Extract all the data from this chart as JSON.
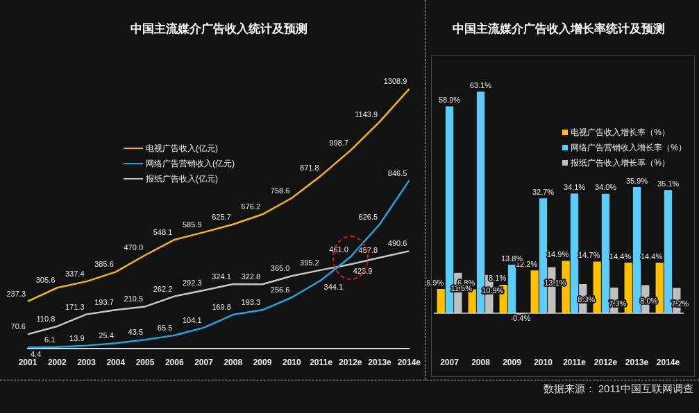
{
  "chart_data": [
    {
      "type": "line",
      "title": "中国主流媒介广告收入统计及预测",
      "categories": [
        "2001",
        "2002",
        "2003",
        "2004",
        "2005",
        "2006",
        "2007",
        "2008",
        "2009",
        "2010",
        "2011e",
        "2012e",
        "2013e",
        "2014e"
      ],
      "legend": "top left",
      "series": [
        {
          "name": "电视广告收入(亿元)",
          "color": "#f5b800",
          "values": [
            237.3,
            305.6,
            337.4,
            385.6,
            470.0,
            548.1,
            585.9,
            625.7,
            676.2,
            758.6,
            871.8,
            998.7,
            1143.9,
            1308.9
          ],
          "value_labels": [
            "237.3",
            "305.6",
            "337.4",
            "385.6",
            "470.0",
            "548.1",
            "585.9",
            "625.7",
            "676.2",
            "758.6",
            "871.8",
            "998.7",
            "1143.9",
            "1308.9"
          ]
        },
        {
          "name": "网络广告营销收入(亿元)",
          "color": "#1ea6e0",
          "values": [
            4.4,
            6.1,
            13.9,
            25.4,
            43.5,
            65.5,
            104.1,
            169.8,
            193.3,
            256.6,
            344.1,
            461.0,
            626.5,
            846.5
          ],
          "value_labels": [
            "4.4",
            "6.1",
            "13.9",
            "25.4",
            "43.5",
            "65.5",
            "104.1",
            "169.8",
            "193.3",
            "256.6",
            "344.1",
            "461.0",
            "626.5",
            "846.5"
          ]
        },
        {
          "name": "报纸广告收入(亿元)",
          "color": "#c8c8c8",
          "values": [
            70.6,
            110.8,
            171.3,
            193.7,
            210.5,
            262.2,
            292.3,
            324.1,
            322.8,
            365.0,
            395.2,
            423.9,
            457.8,
            490.6
          ],
          "value_labels": [
            "70.6",
            "110.8",
            "171.3",
            "193.7",
            "210.5",
            "262.2",
            "292.3",
            "324.1",
            "322.8",
            "365.0",
            "395.2",
            "423.9",
            "457.8",
            "490.6"
          ]
        }
      ]
    },
    {
      "type": "bar",
      "title": "中国主流媒介广告收入增长率统计及预测",
      "categories": [
        "2007",
        "2008",
        "2009",
        "2010",
        "2011e",
        "2012e",
        "2013e",
        "2014e"
      ],
      "legend": "right",
      "series": [
        {
          "name": "电视广告收入增长率（%）",
          "color": "#ffc000",
          "values": [
            6.9,
            6.8,
            8.1,
            12.2,
            14.9,
            14.7,
            14.4,
            14.4
          ],
          "value_labels": [
            "6.9%",
            "6.8%",
            "8.1%",
            "12.2%",
            "14.9%",
            "14.7%",
            "14.4%",
            "14.4%"
          ]
        },
        {
          "name": "网络广告营销收入增长率（%）",
          "color": "#5bcdf8",
          "values": [
            58.9,
            63.1,
            13.8,
            32.7,
            34.1,
            34.0,
            35.9,
            35.1
          ],
          "value_labels": [
            "58.9%",
            "63.1%",
            "13.8%",
            "32.7%",
            "34.1%",
            "34.0%",
            "35.9%",
            "35.1%"
          ]
        },
        {
          "name": "报纸广告收入增长率（%）",
          "color": "#bfbfbf",
          "values": [
            11.5,
            10.9,
            -0.4,
            13.1,
            8.3,
            7.3,
            8.0,
            7.2
          ],
          "value_labels": [
            "11.5%",
            "10.9%",
            "-0.4%",
            "13.1%",
            "8.3%",
            "7.3%",
            "8.0%",
            "7.2%"
          ]
        }
      ],
      "annotations": [
        "数据来源： 2011中国互联网调查"
      ]
    }
  ]
}
